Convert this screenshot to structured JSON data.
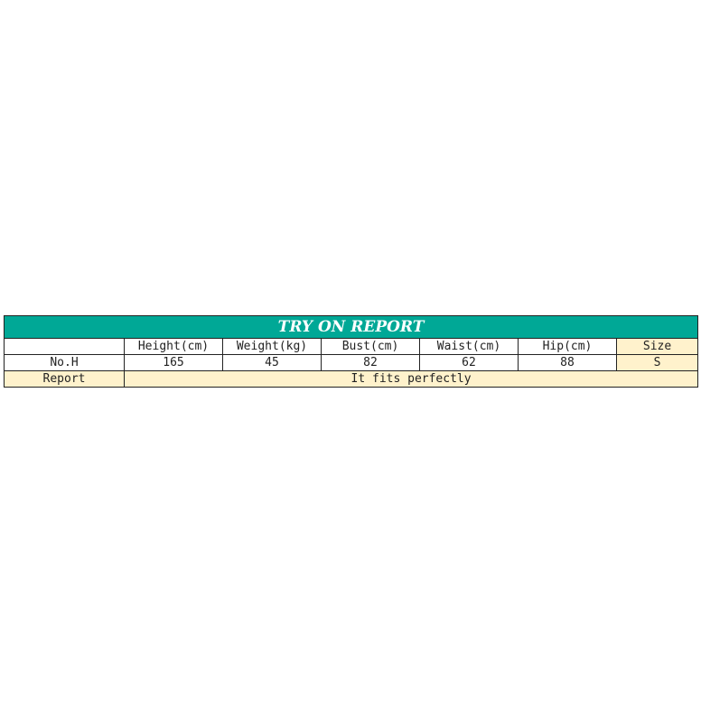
{
  "title": "TRY ON REPORT",
  "colors": {
    "header": "#00a896",
    "highlight": "#fff2cc"
  },
  "headers": [
    "",
    "Height(cm)",
    "Weight(kg)",
    "Bust(cm)",
    "Waist(cm)",
    "Hip(cm)",
    "Size"
  ],
  "row": [
    "No.H",
    "165",
    "45",
    "82",
    "62",
    "88",
    "S"
  ],
  "report": {
    "label": "Report",
    "text": "It fits perfectly"
  }
}
